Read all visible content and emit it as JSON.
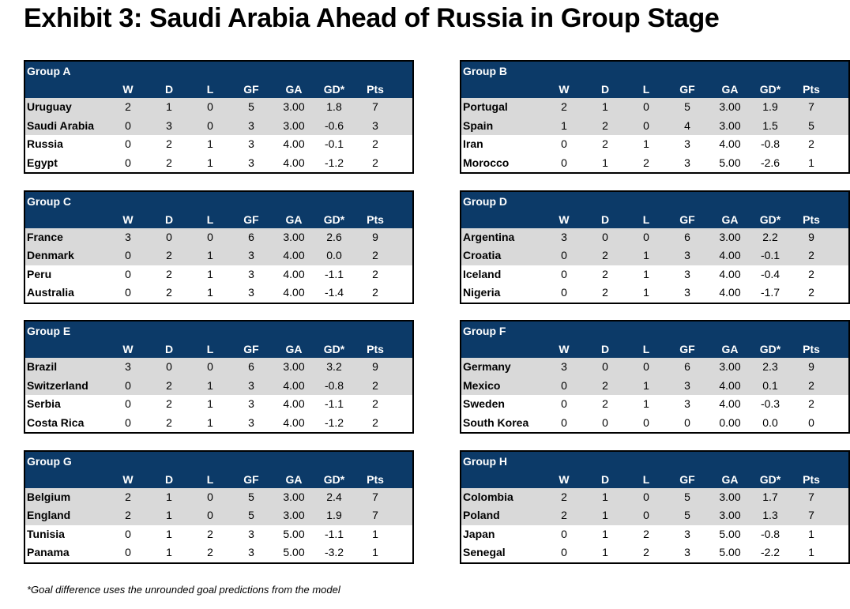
{
  "header": {
    "title": "Exhibit 3:  Saudi Arabia Ahead of Russia in Group Stage"
  },
  "columns": [
    "W",
    "D",
    "L",
    "GF",
    "GA",
    "GD*",
    "Pts"
  ],
  "groups": [
    {
      "name": "Group A",
      "rows": [
        [
          "Uruguay",
          "2",
          "1",
          "0",
          "5",
          "3.00",
          "1.8",
          "7"
        ],
        [
          "Saudi Arabia",
          "0",
          "3",
          "0",
          "3",
          "3.00",
          "-0.6",
          "3"
        ],
        [
          "Russia",
          "0",
          "2",
          "1",
          "3",
          "4.00",
          "-0.1",
          "2"
        ],
        [
          "Egypt",
          "0",
          "2",
          "1",
          "3",
          "4.00",
          "-1.2",
          "2"
        ]
      ]
    },
    {
      "name": "Group B",
      "rows": [
        [
          "Portugal",
          "2",
          "1",
          "0",
          "5",
          "3.00",
          "1.9",
          "7"
        ],
        [
          "Spain",
          "1",
          "2",
          "0",
          "4",
          "3.00",
          "1.5",
          "5"
        ],
        [
          "Iran",
          "0",
          "2",
          "1",
          "3",
          "4.00",
          "-0.8",
          "2"
        ],
        [
          "Morocco",
          "0",
          "1",
          "2",
          "3",
          "5.00",
          "-2.6",
          "1"
        ]
      ]
    },
    {
      "name": "Group C",
      "rows": [
        [
          "France",
          "3",
          "0",
          "0",
          "6",
          "3.00",
          "2.6",
          "9"
        ],
        [
          "Denmark",
          "0",
          "2",
          "1",
          "3",
          "4.00",
          "0.0",
          "2"
        ],
        [
          "Peru",
          "0",
          "2",
          "1",
          "3",
          "4.00",
          "-1.1",
          "2"
        ],
        [
          "Australia",
          "0",
          "2",
          "1",
          "3",
          "4.00",
          "-1.4",
          "2"
        ]
      ]
    },
    {
      "name": "Group D",
      "rows": [
        [
          "Argentina",
          "3",
          "0",
          "0",
          "6",
          "3.00",
          "2.2",
          "9"
        ],
        [
          "Croatia",
          "0",
          "2",
          "1",
          "3",
          "4.00",
          "-0.1",
          "2"
        ],
        [
          "Iceland",
          "0",
          "2",
          "1",
          "3",
          "4.00",
          "-0.4",
          "2"
        ],
        [
          "Nigeria",
          "0",
          "2",
          "1",
          "3",
          "4.00",
          "-1.7",
          "2"
        ]
      ]
    },
    {
      "name": "Group E",
      "rows": [
        [
          "Brazil",
          "3",
          "0",
          "0",
          "6",
          "3.00",
          "3.2",
          "9"
        ],
        [
          "Switzerland",
          "0",
          "2",
          "1",
          "3",
          "4.00",
          "-0.8",
          "2"
        ],
        [
          "Serbia",
          "0",
          "2",
          "1",
          "3",
          "4.00",
          "-1.1",
          "2"
        ],
        [
          "Costa Rica",
          "0",
          "2",
          "1",
          "3",
          "4.00",
          "-1.2",
          "2"
        ]
      ]
    },
    {
      "name": "Group F",
      "rows": [
        [
          "Germany",
          "3",
          "0",
          "0",
          "6",
          "3.00",
          "2.3",
          "9"
        ],
        [
          "Mexico",
          "0",
          "2",
          "1",
          "3",
          "4.00",
          "0.1",
          "2"
        ],
        [
          "Sweden",
          "0",
          "2",
          "1",
          "3",
          "4.00",
          "-0.3",
          "2"
        ],
        [
          "South Korea",
          "0",
          "0",
          "0",
          "0",
          "0.00",
          "0.0",
          "0"
        ]
      ]
    },
    {
      "name": "Group G",
      "rows": [
        [
          "Belgium",
          "2",
          "1",
          "0",
          "5",
          "3.00",
          "2.4",
          "7"
        ],
        [
          "England",
          "2",
          "1",
          "0",
          "5",
          "3.00",
          "1.9",
          "7"
        ],
        [
          "Tunisia",
          "0",
          "1",
          "2",
          "3",
          "5.00",
          "-1.1",
          "1"
        ],
        [
          "Panama",
          "0",
          "1",
          "2",
          "3",
          "5.00",
          "-3.2",
          "1"
        ]
      ]
    },
    {
      "name": "Group H",
      "rows": [
        [
          "Colombia",
          "2",
          "1",
          "0",
          "5",
          "3.00",
          "1.7",
          "7"
        ],
        [
          "Poland",
          "2",
          "1",
          "0",
          "5",
          "3.00",
          "1.3",
          "7"
        ],
        [
          "Japan",
          "0",
          "1",
          "2",
          "3",
          "5.00",
          "-0.8",
          "1"
        ],
        [
          "Senegal",
          "0",
          "1",
          "2",
          "3",
          "5.00",
          "-2.2",
          "1"
        ]
      ]
    }
  ],
  "footnote": "*Goal difference uses the unrounded goal predictions from the model"
}
